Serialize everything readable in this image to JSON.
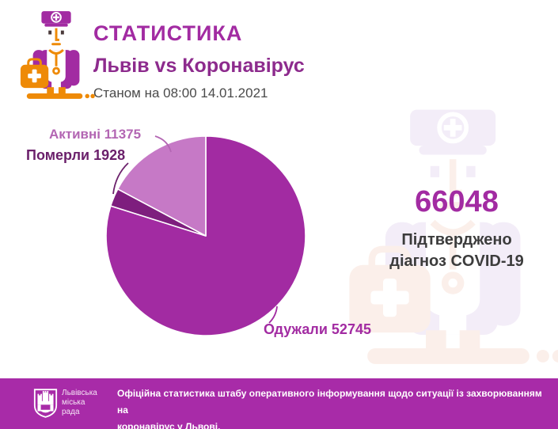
{
  "page": {
    "background": "#FFFFFF",
    "accent": "#A22BA2"
  },
  "header": {
    "title": "СТАТИСТИКА",
    "subtitle": "Львів vs Коронавірус",
    "as_of": "Станом на 08:00 14.01.2021"
  },
  "chart_data": {
    "type": "pie",
    "title": "Львів vs Коронавірус",
    "as_of": "Станом на 08:00 14.01.2021",
    "total": 66048,
    "direction": "clockwise",
    "start_angle_deg": 0,
    "grid": false,
    "legend_position": "callout-labels",
    "slices": [
      {
        "label": "Одужали",
        "value": 52745,
        "color": "#A22BA2",
        "label_color": "#A22BA2"
      },
      {
        "label": "Померли",
        "value": 1928,
        "color": "#7E1E7E",
        "label_color": "#6B206B"
      },
      {
        "label": "Активні",
        "value": 11375,
        "color": "#C679C6",
        "label_color": "#B366B3"
      }
    ],
    "callouts": {
      "active": "Активні 11375",
      "deaths": "Померли 1928",
      "recovered": "Одужали 52745"
    }
  },
  "summary": {
    "confirmed_total": "66048",
    "caption_line1": "Підтверджено",
    "caption_line2": "діагноз COVID-19"
  },
  "footer": {
    "background": "#A82BA8",
    "org_name_lines": [
      "Львівська",
      "міська",
      "рада"
    ],
    "note_line1": "Офіційна статистика штабу оперативного інформування щодо ситуації із захворюванням на",
    "note_line2": "коронавірус у Львові."
  },
  "icons": {
    "doctor_illustration": "doctor-with-medical-bag",
    "watermark": "doctor-with-medical-bag-light",
    "logo": "lviv-city-council-shield"
  }
}
